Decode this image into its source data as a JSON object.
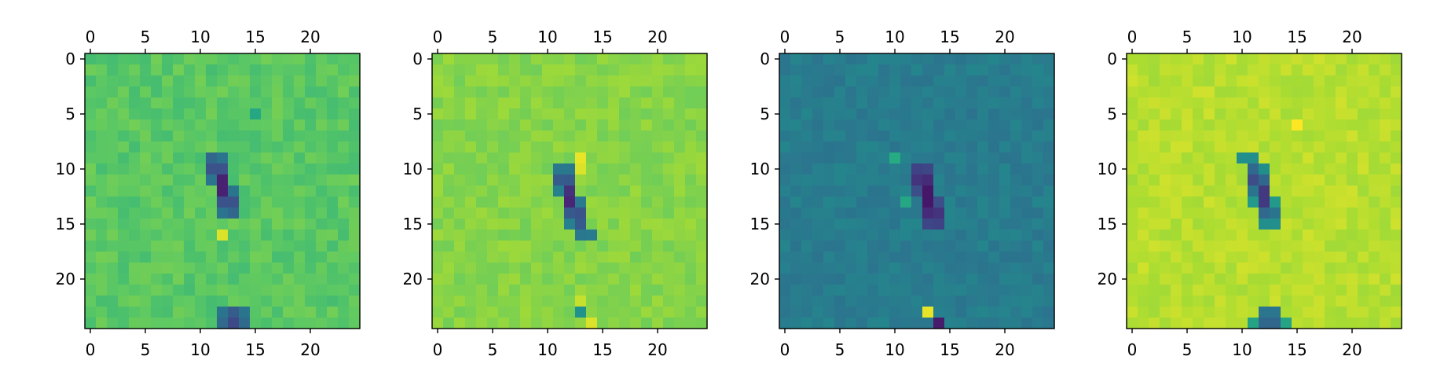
{
  "chart_data": [
    {
      "type": "heatmap",
      "colormap": "viridis",
      "grid_size": 25,
      "x_ticks": [
        "0",
        "5",
        "10",
        "15",
        "20"
      ],
      "y_ticks": [
        "0",
        "5",
        "10",
        "15",
        "20"
      ],
      "xlim": [
        -0.5,
        24.5
      ],
      "ylim": [
        24.5,
        -0.5
      ],
      "axis_labels_top_and_bottom": true,
      "background_level": 0.74,
      "noise_amplitude": 0.045,
      "features": [
        {
          "kind": "streak",
          "row": 11.5,
          "col": 12.0,
          "half_length": 3.0,
          "half_width": 0.85,
          "slope": 0.33,
          "level": 0.12
        },
        {
          "kind": "spot",
          "row": 16.0,
          "col": 12.0,
          "level": 0.95
        },
        {
          "kind": "spot",
          "row": 5.0,
          "col": 15.0,
          "level": 0.6
        },
        {
          "kind": "blob",
          "row": 23.6,
          "col": 13.0,
          "radius_r": 1.2,
          "radius_c": 1.8,
          "level": 0.1
        }
      ]
    },
    {
      "type": "heatmap",
      "colormap": "viridis",
      "grid_size": 25,
      "x_ticks": [
        "0",
        "5",
        "10",
        "15",
        "20"
      ],
      "y_ticks": [
        "0",
        "5",
        "10",
        "15",
        "20"
      ],
      "xlim": [
        -0.5,
        24.5
      ],
      "ylim": [
        24.5,
        -0.5
      ],
      "axis_labels_top_and_bottom": true,
      "background_level": 0.82,
      "noise_amplitude": 0.04,
      "features": [
        {
          "kind": "streak",
          "row": 13.0,
          "col": 12.2,
          "half_length": 3.2,
          "half_width": 0.85,
          "slope": 0.33,
          "level": 0.12
        },
        {
          "kind": "spot",
          "row": 9.0,
          "col": 13.0,
          "level": 0.97
        },
        {
          "kind": "spot",
          "row": 10.0,
          "col": 13.0,
          "level": 0.95
        },
        {
          "kind": "spot",
          "row": 22.0,
          "col": 13.0,
          "level": 0.92
        },
        {
          "kind": "spot",
          "row": 23.0,
          "col": 13.0,
          "level": 0.5
        },
        {
          "kind": "spot",
          "row": 24.0,
          "col": 14.0,
          "level": 0.95
        }
      ]
    },
    {
      "type": "heatmap",
      "colormap": "viridis",
      "grid_size": 25,
      "x_ticks": [
        "0",
        "5",
        "10",
        "15",
        "20"
      ],
      "y_ticks": [
        "0",
        "5",
        "10",
        "15",
        "20"
      ],
      "xlim": [
        -0.5,
        24.5
      ],
      "ylim": [
        24.5,
        -0.5
      ],
      "axis_labels_top_and_bottom": true,
      "background_level": 0.42,
      "noise_amplitude": 0.035,
      "features": [
        {
          "kind": "streak",
          "row": 12.5,
          "col": 13.0,
          "half_length": 2.8,
          "half_width": 0.8,
          "slope": 0.3,
          "level": 0.08
        },
        {
          "kind": "spot",
          "row": 9.0,
          "col": 10.0,
          "level": 0.62
        },
        {
          "kind": "spot",
          "row": 13.0,
          "col": 11.0,
          "level": 0.6
        },
        {
          "kind": "spot",
          "row": 23.0,
          "col": 13.0,
          "level": 0.97
        },
        {
          "kind": "spot",
          "row": 24.0,
          "col": 14.0,
          "level": 0.1
        }
      ]
    },
    {
      "type": "heatmap",
      "colormap": "viridis",
      "grid_size": 25,
      "x_ticks": [
        "0",
        "5",
        "10",
        "15",
        "20"
      ],
      "y_ticks": [
        "0",
        "5",
        "10",
        "15",
        "20"
      ],
      "xlim": [
        -0.5,
        24.5
      ],
      "ylim": [
        24.5,
        -0.5
      ],
      "axis_labels_top_and_bottom": true,
      "background_level": 0.9,
      "noise_amplitude": 0.035,
      "features": [
        {
          "kind": "streak",
          "row": 12.0,
          "col": 11.7,
          "half_length": 2.8,
          "half_width": 0.85,
          "slope": 0.3,
          "level": 0.12
        },
        {
          "kind": "spot",
          "row": 6.0,
          "col": 15.0,
          "level": 1.0
        },
        {
          "kind": "blob",
          "row": 23.6,
          "col": 12.5,
          "radius_r": 1.2,
          "radius_c": 1.6,
          "level": 0.12
        }
      ]
    }
  ]
}
